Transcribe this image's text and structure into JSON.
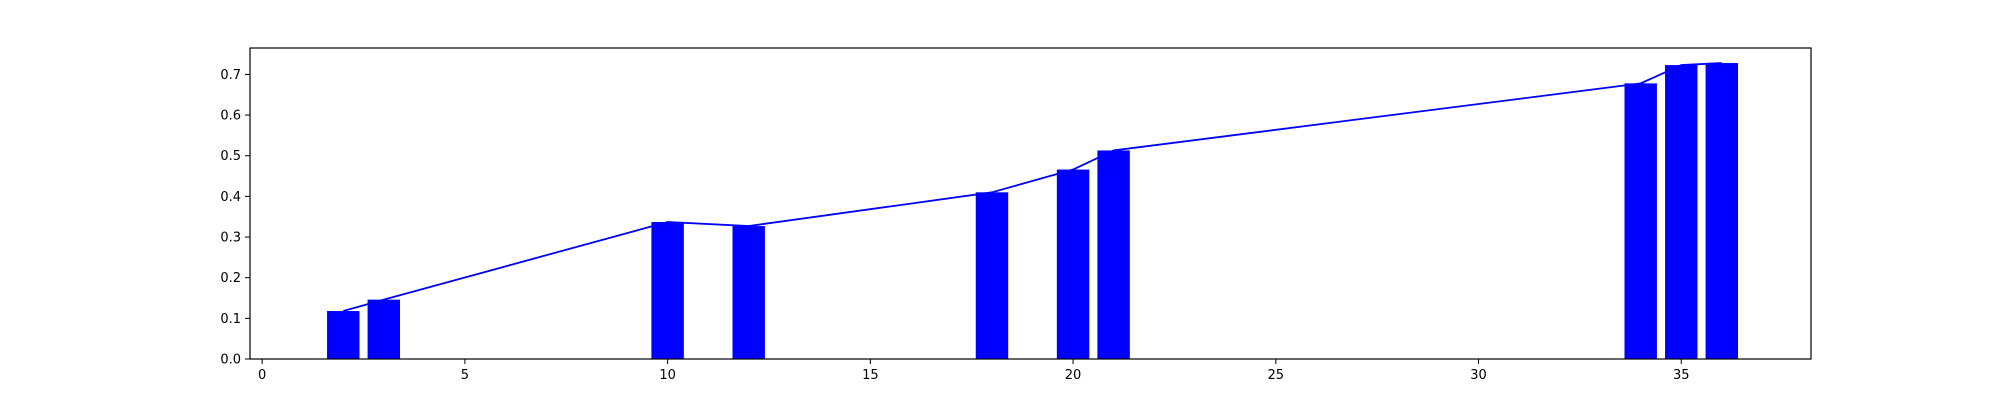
{
  "chart_data": {
    "type": "bar",
    "title": "",
    "xlabel": "",
    "ylabel": "",
    "xlim": [
      -0.3,
      38.2
    ],
    "ylim": [
      0,
      0.765
    ],
    "bar_width": 0.8,
    "x": [
      2,
      3,
      10,
      12,
      18,
      20,
      21,
      34,
      35,
      36
    ],
    "values": [
      0.118,
      0.146,
      0.337,
      0.327,
      0.41,
      0.466,
      0.513,
      0.678,
      0.723,
      0.728
    ],
    "line": {
      "x": [
        2,
        3,
        10,
        12,
        18,
        20,
        21,
        34,
        35,
        36
      ],
      "y": [
        0.118,
        0.146,
        0.337,
        0.327,
        0.41,
        0.466,
        0.513,
        0.678,
        0.723,
        0.728
      ]
    },
    "xticks": [
      0,
      5,
      10,
      15,
      20,
      25,
      30,
      35
    ],
    "yticks": [
      0.0,
      0.1,
      0.2,
      0.3,
      0.4,
      0.5,
      0.6,
      0.7
    ],
    "ytick_labels": [
      "0.0",
      "0.1",
      "0.2",
      "0.3",
      "0.4",
      "0.5",
      "0.6",
      "0.7"
    ],
    "bar_color": "#0000ff",
    "line_color": "#0000ff",
    "axis_color": "#000000",
    "grid": false,
    "legend": "none"
  }
}
